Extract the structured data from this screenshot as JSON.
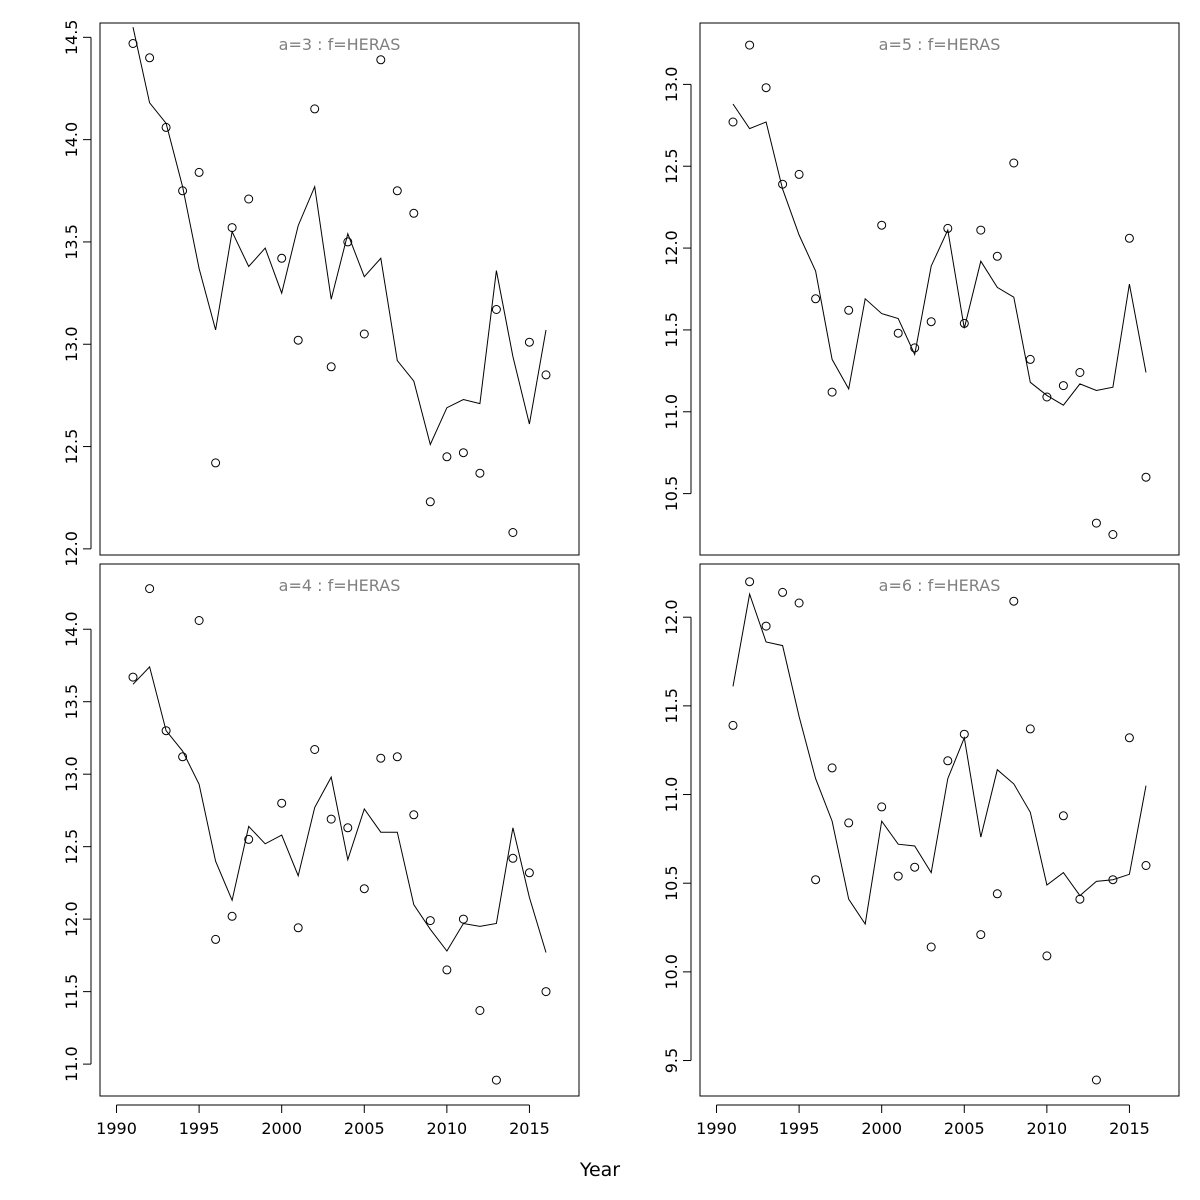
{
  "xlabel": "Year",
  "chart_data": [
    {
      "type": "line",
      "title": "a=3  :  f=HERAS",
      "xlim": [
        1989,
        2018
      ],
      "ylim": [
        11.97,
        14.57
      ],
      "xticks": [
        1990,
        1995,
        2000,
        2005,
        2010,
        2015
      ],
      "yticks": [
        "12.0",
        "12.5",
        "13.0",
        "13.5",
        "14.0",
        "14.5"
      ],
      "series": [
        {
          "style": "line",
          "x": [
            1991,
            1992,
            1993,
            1994,
            1995,
            1996,
            1997,
            1998,
            1999,
            2000,
            2001,
            2002,
            2003,
            2004,
            2005,
            2006,
            2007,
            2008,
            2009,
            2010,
            2011,
            2012,
            2013,
            2014,
            2015,
            2016
          ],
          "y": [
            14.55,
            14.18,
            14.08,
            13.77,
            13.37,
            13.07,
            13.55,
            13.38,
            13.47,
            13.25,
            13.58,
            13.77,
            13.22,
            13.54,
            13.33,
            13.42,
            12.92,
            12.82,
            12.51,
            12.69,
            12.73,
            12.71,
            13.36,
            12.94,
            12.61,
            13.07
          ]
        },
        {
          "style": "points",
          "x": [
            1991,
            1992,
            1993,
            1994,
            1995,
            1996,
            1997,
            1998,
            2000,
            2001,
            2002,
            2003,
            2004,
            2005,
            2006,
            2007,
            2008,
            2009,
            2010,
            2011,
            2012,
            2013,
            2014,
            2015,
            2016
          ],
          "y": [
            14.47,
            14.4,
            14.06,
            13.75,
            13.84,
            12.42,
            13.57,
            13.71,
            13.42,
            13.02,
            14.15,
            12.89,
            13.5,
            13.05,
            14.39,
            13.75,
            13.64,
            12.23,
            12.45,
            12.47,
            12.37,
            13.17,
            12.08,
            13.01,
            12.85
          ]
        }
      ]
    },
    {
      "type": "line",
      "title": "a=5  :  f=HERAS",
      "xlim": [
        1989,
        2018
      ],
      "ylim": [
        10.125,
        13.375
      ],
      "xticks": [
        1990,
        1995,
        2000,
        2005,
        2010,
        2015
      ],
      "yticks": [
        "10.5",
        "11.0",
        "11.5",
        "12.0",
        "12.5",
        "13.0"
      ],
      "series": [
        {
          "style": "line",
          "x": [
            1991,
            1992,
            1993,
            1994,
            1995,
            1996,
            1997,
            1998,
            1999,
            2000,
            2001,
            2002,
            2003,
            2004,
            2005,
            2006,
            2007,
            2008,
            2009,
            2010,
            2011,
            2012,
            2013,
            2014,
            2015,
            2016
          ],
          "y": [
            12.88,
            12.73,
            12.77,
            12.36,
            12.08,
            11.86,
            11.32,
            11.14,
            11.69,
            11.6,
            11.57,
            11.35,
            11.89,
            12.11,
            11.51,
            11.92,
            11.76,
            11.7,
            11.18,
            11.1,
            11.04,
            11.17,
            11.13,
            11.15,
            11.78,
            11.24
          ]
        },
        {
          "style": "points",
          "x": [
            1991,
            1992,
            1993,
            1994,
            1995,
            1996,
            1997,
            1998,
            2000,
            2001,
            2002,
            2003,
            2004,
            2005,
            2006,
            2007,
            2008,
            2009,
            2010,
            2011,
            2012,
            2013,
            2014,
            2015,
            2016
          ],
          "y": [
            12.77,
            13.24,
            12.98,
            12.39,
            12.45,
            11.69,
            11.12,
            11.62,
            12.14,
            11.48,
            11.39,
            11.55,
            12.12,
            11.54,
            12.11,
            11.95,
            12.52,
            11.32,
            11.09,
            11.16,
            11.24,
            10.32,
            10.25,
            12.06,
            10.6
          ]
        }
      ]
    },
    {
      "type": "line",
      "title": "a=4  :  f=HERAS",
      "xlim": [
        1989,
        2018
      ],
      "ylim": [
        10.78,
        14.45
      ],
      "xticks": [
        1990,
        1995,
        2000,
        2005,
        2010,
        2015
      ],
      "yticks": [
        "11.0",
        "11.5",
        "12.0",
        "12.5",
        "13.0",
        "13.5",
        "14.0"
      ],
      "series": [
        {
          "style": "line",
          "x": [
            1991,
            1992,
            1993,
            1994,
            1995,
            1996,
            1997,
            1998,
            1999,
            2000,
            2001,
            2002,
            2003,
            2004,
            2005,
            2006,
            2007,
            2008,
            2009,
            2010,
            2011,
            2012,
            2013,
            2014,
            2015,
            2016
          ],
          "y": [
            13.62,
            13.74,
            13.3,
            13.16,
            12.93,
            12.4,
            12.13,
            12.64,
            12.52,
            12.58,
            12.3,
            12.77,
            12.98,
            12.41,
            12.76,
            12.6,
            12.6,
            12.1,
            11.93,
            11.78,
            11.97,
            11.95,
            11.97,
            12.63,
            12.15,
            11.77
          ]
        },
        {
          "style": "points",
          "x": [
            1991,
            1992,
            1993,
            1994,
            1995,
            1996,
            1997,
            1998,
            2000,
            2001,
            2002,
            2003,
            2004,
            2005,
            2006,
            2007,
            2008,
            2009,
            2010,
            2011,
            2012,
            2013,
            2014,
            2015,
            2016
          ],
          "y": [
            13.67,
            14.28,
            13.3,
            13.12,
            14.06,
            11.86,
            12.02,
            12.55,
            12.8,
            11.94,
            13.17,
            12.69,
            12.63,
            12.21,
            13.11,
            13.12,
            12.72,
            11.99,
            11.65,
            12.0,
            11.37,
            10.89,
            12.42,
            12.32,
            11.5
          ]
        }
      ]
    },
    {
      "type": "line",
      "title": "a=6  :  f=HERAS",
      "xlim": [
        1989,
        2018
      ],
      "ylim": [
        9.3,
        12.3
      ],
      "xticks": [
        1990,
        1995,
        2000,
        2005,
        2010,
        2015
      ],
      "yticks": [
        "9.5",
        "10.0",
        "10.5",
        "11.0",
        "11.5",
        "12.0"
      ],
      "series": [
        {
          "style": "line",
          "x": [
            1991,
            1992,
            1993,
            1994,
            1995,
            1996,
            1997,
            1998,
            1999,
            2000,
            2001,
            2002,
            2003,
            2004,
            2005,
            2006,
            2007,
            2008,
            2009,
            2010,
            2011,
            2012,
            2013,
            2014,
            2015,
            2016
          ],
          "y": [
            11.61,
            12.13,
            11.86,
            11.84,
            11.44,
            11.09,
            10.85,
            10.41,
            10.27,
            10.85,
            10.72,
            10.71,
            10.56,
            11.09,
            11.32,
            10.76,
            11.14,
            11.06,
            10.9,
            10.49,
            10.56,
            10.43,
            10.51,
            10.52,
            10.55,
            11.05
          ]
        },
        {
          "style": "points",
          "x": [
            1991,
            1992,
            1993,
            1994,
            1995,
            1996,
            1997,
            1998,
            2000,
            2001,
            2002,
            2003,
            2004,
            2005,
            2006,
            2007,
            2008,
            2009,
            2010,
            2011,
            2012,
            2013,
            2014,
            2015,
            2016
          ],
          "y": [
            11.39,
            12.2,
            11.95,
            12.14,
            12.08,
            10.52,
            11.15,
            10.84,
            10.93,
            10.54,
            10.59,
            10.14,
            11.19,
            11.34,
            10.21,
            10.44,
            12.09,
            11.37,
            10.09,
            10.88,
            10.41,
            9.39,
            10.52,
            11.32,
            10.6
          ]
        }
      ]
    }
  ]
}
